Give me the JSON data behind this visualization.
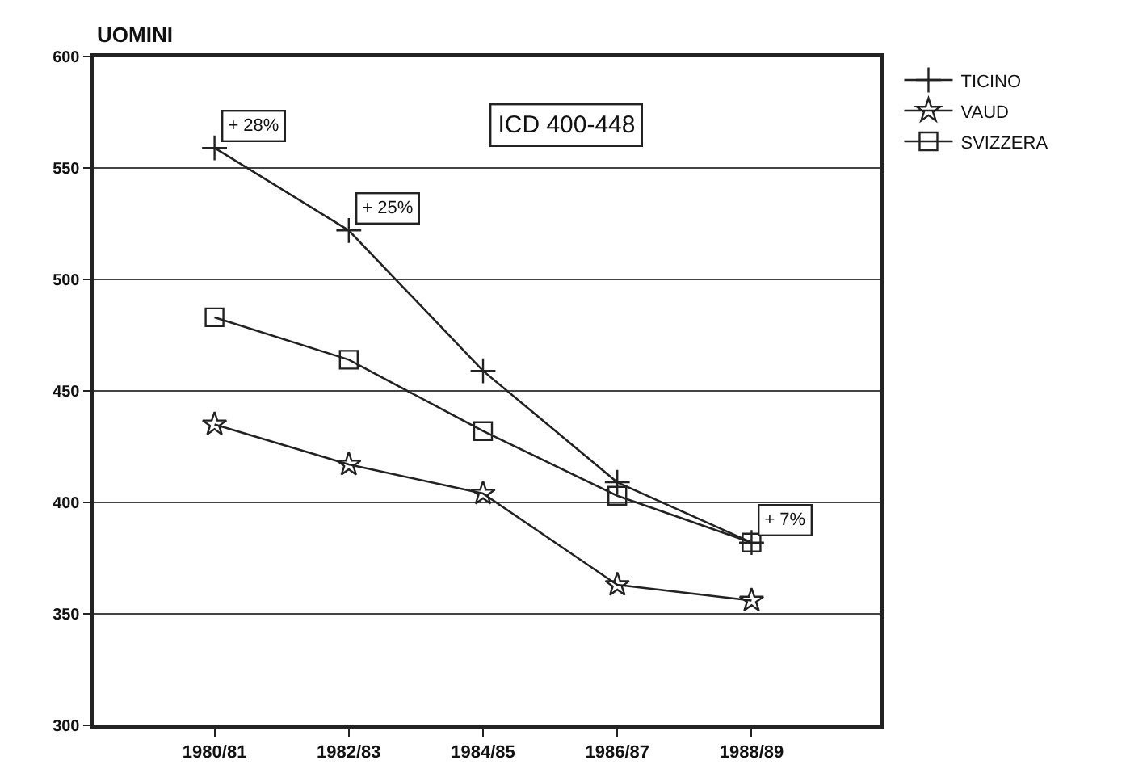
{
  "chart_data": {
    "type": "line",
    "ylabel": "UOMINI",
    "categories": [
      "1980/81",
      "1982/83",
      "1984/85",
      "1986/87",
      "1988/89"
    ],
    "series": [
      {
        "name": "TICINO",
        "color": "#222222",
        "marker": "cross",
        "values": [
          559,
          522,
          459,
          409,
          382
        ]
      },
      {
        "name": "VAUD",
        "color": "#222222",
        "marker": "star",
        "values": [
          435,
          417,
          404,
          363,
          356
        ]
      },
      {
        "name": "SVIZZERA",
        "color": "#222222",
        "marker": "square",
        "values": [
          483,
          464,
          432,
          403,
          382
        ]
      }
    ],
    "ylim": [
      300,
      600
    ],
    "yticks": [
      300,
      350,
      400,
      450,
      500,
      550,
      600
    ],
    "grid": "y",
    "legend": "top right",
    "line_style": "solid",
    "annotations": [
      {
        "text": "+ 28%",
        "x": "1980/81",
        "y": 559
      },
      {
        "text": "+ 25%",
        "x": "1982/83",
        "y": 522
      },
      {
        "text": "+ 7%",
        "x": "1988/89",
        "y": 382
      },
      "ICD 400-448"
    ]
  }
}
